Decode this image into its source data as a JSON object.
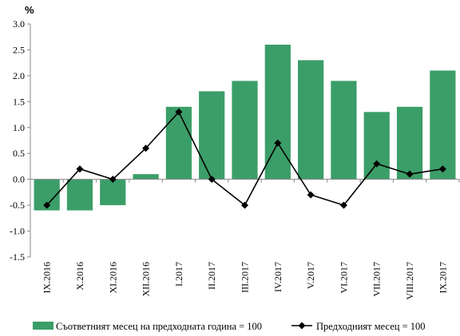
{
  "chart_data": {
    "type": "bar",
    "unit_label": "%",
    "categories": [
      "IX.2016",
      "X.2016",
      "XI.2016",
      "XII.2016",
      "I.2017",
      "II.2017",
      "III.2017",
      "IV.2017",
      "V.2017",
      "VI.2017",
      "VII.2017",
      "VIII.2017",
      "IX.2017"
    ],
    "series": [
      {
        "name": "Съответният месец на предходната година = 100",
        "type": "bar",
        "color": "#3b9e68",
        "values": [
          -0.6,
          -0.6,
          -0.5,
          0.1,
          1.4,
          1.7,
          1.9,
          2.6,
          2.3,
          1.9,
          1.3,
          1.4,
          2.1
        ]
      },
      {
        "name": "Предходният месец = 100",
        "type": "line",
        "marker": "diamond",
        "color": "#000000",
        "values": [
          -0.5,
          0.2,
          0.0,
          0.6,
          1.3,
          0.0,
          -0.5,
          0.7,
          -0.3,
          -0.5,
          0.3,
          0.1,
          0.2
        ]
      }
    ],
    "ylim": [
      -1.5,
      3.0
    ],
    "yticks": [
      "3.0",
      "2.5",
      "2.0",
      "1.5",
      "1.0",
      "0.5",
      "0.0",
      "-0.5",
      "-1.0",
      "-1.5"
    ],
    "grid": false,
    "legend": "bottom"
  }
}
